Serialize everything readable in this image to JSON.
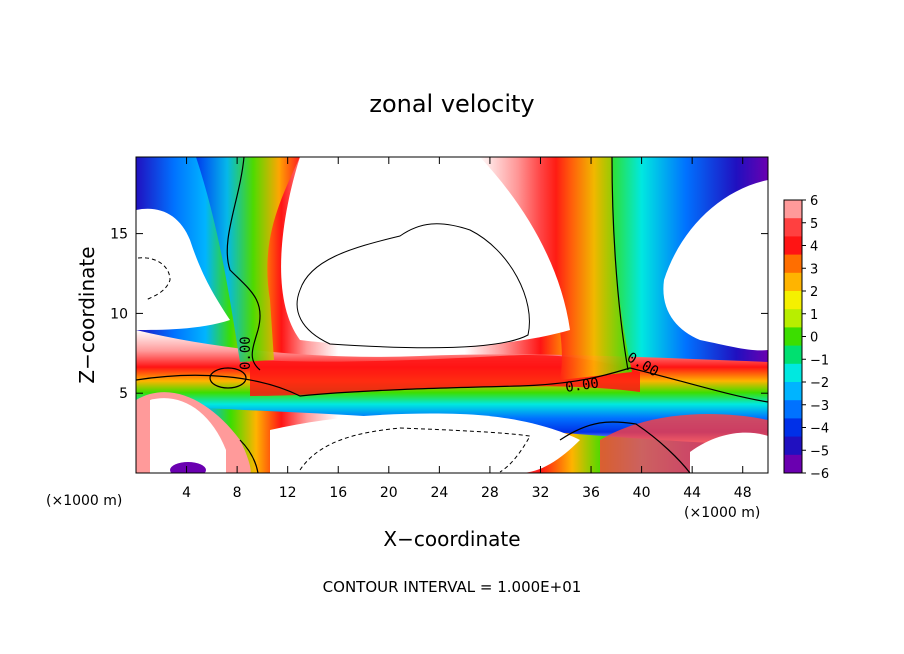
{
  "chart_data": {
    "type": "heatmap",
    "title": "zonal velocity",
    "xlabel": "X−coordinate",
    "ylabel": "Z−coordinate",
    "x_unit_left": "(×1000 m)",
    "x_unit_right": "(×1000 m)",
    "footer": "CONTOUR INTERVAL = 1.000E+01",
    "xlim": [
      0,
      50
    ],
    "ylim": [
      0,
      19.8
    ],
    "x_ticks": [
      "4",
      "8",
      "12",
      "16",
      "20",
      "24",
      "28",
      "32",
      "36",
      "40",
      "44",
      "48"
    ],
    "x_tick_values": [
      4,
      8,
      12,
      16,
      20,
      24,
      28,
      32,
      36,
      40,
      44,
      48
    ],
    "y_ticks": [
      "5",
      "10",
      "15"
    ],
    "y_tick_values": [
      5,
      10,
      15
    ],
    "colorbar": {
      "range": [
        -6,
        6
      ],
      "labels": [
        "6",
        "5",
        "4",
        "3",
        "2",
        "1",
        "0",
        "−1",
        "−2",
        "−3",
        "−4",
        "−5",
        "−6"
      ],
      "colors": [
        "#ff9a9a",
        "#ff4040",
        "#ff1414",
        "#ff6e00",
        "#ffb400",
        "#f5f000",
        "#b8ee00",
        "#3cde00",
        "#00e070",
        "#00e8e0",
        "#00b4ff",
        "#0072ff",
        "#0030e8",
        "#2010c0",
        "#6a00b0"
      ]
    },
    "contour_labels": [
      "0.00",
      "0.00",
      "0.00",
      "0.00"
    ]
  }
}
